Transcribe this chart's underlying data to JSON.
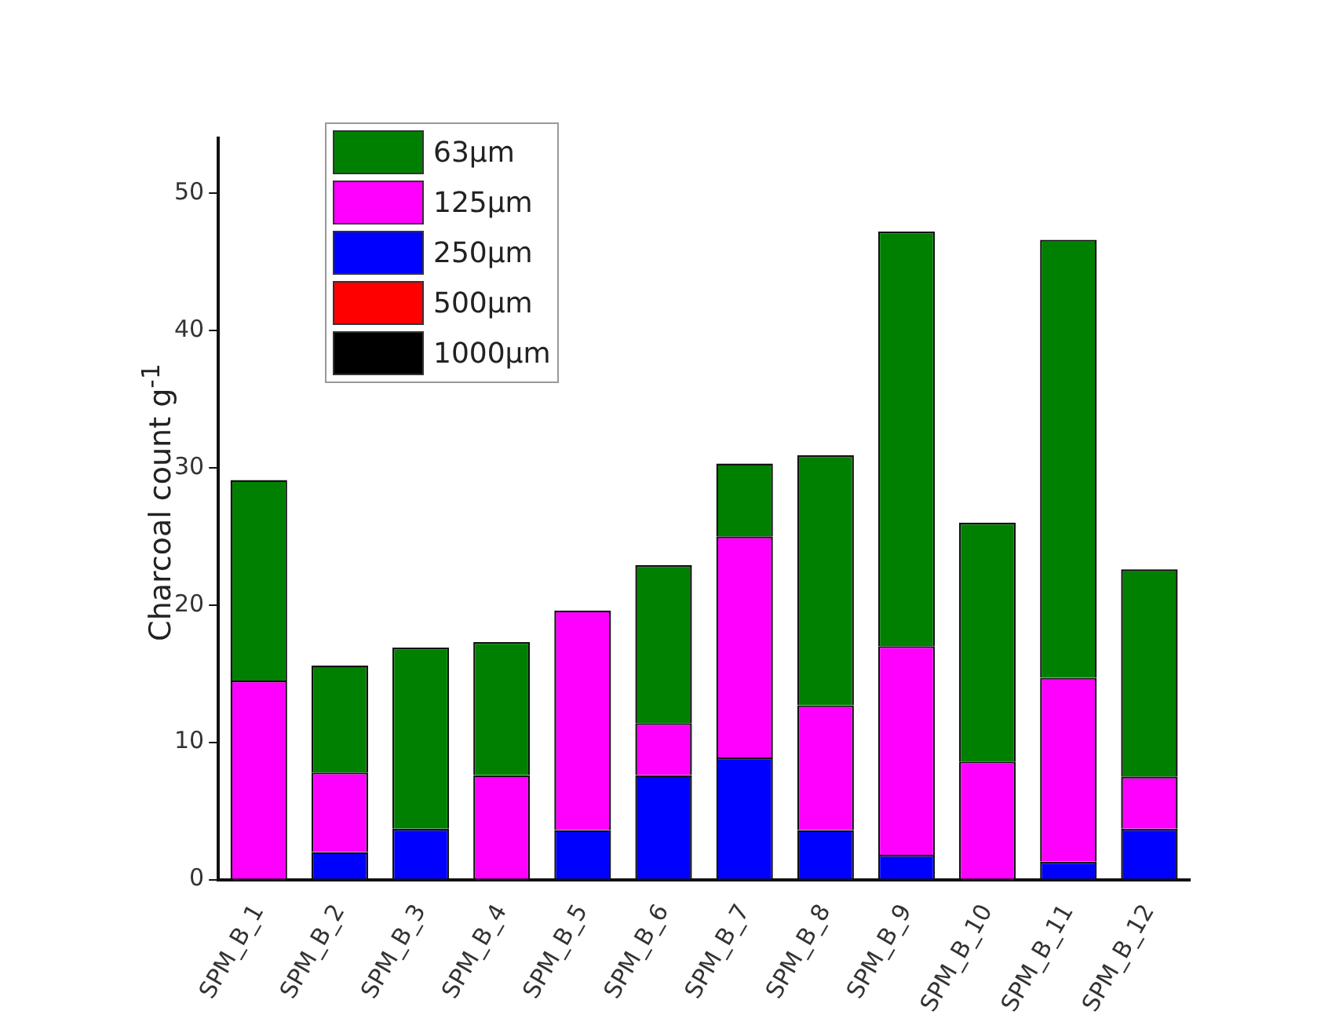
{
  "chart_data": {
    "type": "bar",
    "ylabel": "Charcoal count g$^{-1}$",
    "categories": [
      "SPM_B_1",
      "SPM_B_2",
      "SPM_B_3",
      "SPM_B_4",
      "SPM_B_5",
      "SPM_B_6",
      "SPM_B_7",
      "SPM_B_8",
      "SPM_B_9",
      "SPM_B_10",
      "SPM_B_11",
      "SPM_B_12"
    ],
    "stacked": true,
    "legend": "top left",
    "grid": false,
    "ylim": [
      0,
      54
    ],
    "yticks": [
      0,
      10,
      20,
      30,
      40,
      50
    ],
    "series": [
      {
        "name": "1000µm",
        "color": "#000000",
        "values": [
          0,
          0,
          0,
          0,
          0,
          0,
          0,
          0,
          0,
          0,
          0,
          0
        ]
      },
      {
        "name": "500µm",
        "color": "#ff0000",
        "values": [
          0,
          0,
          0,
          0,
          0,
          0,
          0,
          0,
          0,
          0,
          0,
          0
        ]
      },
      {
        "name": "250µm",
        "color": "#0000ff",
        "values": [
          0,
          2.0,
          3.7,
          0,
          3.6,
          7.6,
          8.9,
          3.6,
          1.8,
          0,
          1.3,
          3.7
        ]
      },
      {
        "name": "125µm",
        "color": "#ff00ff",
        "values": [
          14.5,
          5.8,
          0,
          7.6,
          16.0,
          3.8,
          16.1,
          9.1,
          15.2,
          8.6,
          13.4,
          3.8
        ]
      },
      {
        "name": "63µm",
        "color": "#008000",
        "values": [
          14.6,
          7.8,
          13.2,
          9.7,
          0,
          11.5,
          5.3,
          18.2,
          30.2,
          17.4,
          31.9,
          15.1
        ]
      }
    ]
  }
}
